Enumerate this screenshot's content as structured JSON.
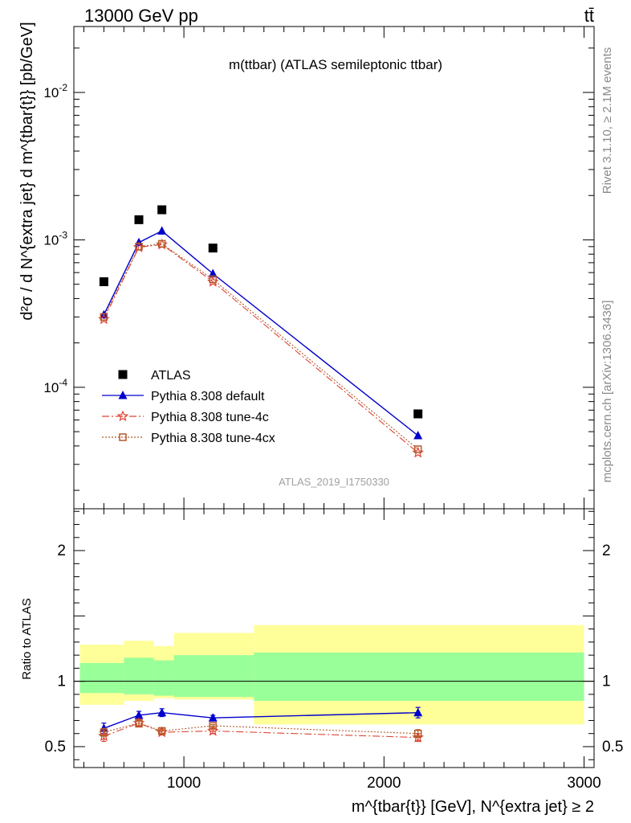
{
  "header": {
    "energy_label": "13000 GeV pp",
    "process_label": "tt̄",
    "plot_title": "m(ttbar) (ATLAS semileptonic ttbar)",
    "analysis_id": "ATLAS_2019_I1750330",
    "side_rivet": "Rivet 3.1.10, ≥ 2.1M events",
    "side_mcplots": "mcplots.cern.ch [arXiv:1306.3436]"
  },
  "axes": {
    "main_ylabel": "d²σ / d N^{extra jet} d m^{tbar{t}} [pb/GeV]",
    "ratio_ylabel": "Ratio to ATLAS",
    "xlabel": "m^{tbar{t}} [GeV], N^{extra jet} ≥ 2"
  },
  "legend": {
    "items": [
      {
        "label": "ATLAS",
        "color": "#000000",
        "marker": "square",
        "line": "none"
      },
      {
        "label": "Pythia 8.308 default",
        "color": "#0000cc",
        "marker": "triangle",
        "line": "solid"
      },
      {
        "label": "Pythia 8.308 tune-4c",
        "color": "#dd4433",
        "marker": "star",
        "line": "dashdot"
      },
      {
        "label": "Pythia 8.308 tune-4cx",
        "color": "#b45a2a",
        "marker": "open-square",
        "line": "dotted"
      }
    ]
  },
  "chart_data": {
    "type": "scatter",
    "xlim": [
      450,
      3050
    ],
    "main": {
      "yscale": "log",
      "ylim": [
        1.5e-05,
        0.028
      ],
      "yticks": [
        0.0001,
        0.001,
        0.01
      ],
      "ytick_labels": [
        "10^-4",
        "10^-3",
        "10^-2"
      ],
      "series": [
        {
          "name": "ATLAS",
          "color": "#000000",
          "marker": "square",
          "x": [
            600,
            775,
            890,
            1145,
            2170
          ],
          "y": [
            0.00052,
            0.00137,
            0.0016,
            0.00088,
            6.6e-05
          ]
        },
        {
          "name": "Pythia 8.308 default",
          "color": "#0000cc",
          "marker": "triangle",
          "x": [
            600,
            775,
            890,
            1145,
            2170
          ],
          "y": [
            0.00031,
            0.00096,
            0.00115,
            0.00059,
            4.7e-05
          ]
        },
        {
          "name": "Pythia 8.308 tune-4c",
          "color": "#dd4433",
          "marker": "star",
          "x": [
            600,
            775,
            890,
            1145,
            2170
          ],
          "y": [
            0.00029,
            0.00089,
            0.00093,
            0.00052,
            3.6e-05
          ]
        },
        {
          "name": "Pythia 8.308 tune-4cx",
          "color": "#b45a2a",
          "marker": "open-square",
          "x": [
            600,
            775,
            890,
            1145,
            2170
          ],
          "y": [
            0.0003,
            0.0009,
            0.00094,
            0.00054,
            3.8e-05
          ]
        }
      ]
    },
    "ratio": {
      "ylim": [
        0.34,
        2.32
      ],
      "yticks": [
        0.5,
        1,
        2
      ],
      "ytick_labels": [
        "0.5",
        "1",
        "2"
      ],
      "xticks": [
        1000,
        2000,
        3000
      ],
      "xtick_labels": [
        "1000",
        "2000",
        "3000"
      ],
      "bins": [
        [
          480,
          700
        ],
        [
          700,
          850
        ],
        [
          850,
          950
        ],
        [
          950,
          1350
        ],
        [
          1350,
          3000
        ]
      ],
      "band_yellow": [
        [
          0.82,
          1.28
        ],
        [
          0.85,
          1.31
        ],
        [
          0.87,
          1.27
        ],
        [
          0.86,
          1.37
        ],
        [
          0.67,
          1.43
        ]
      ],
      "band_green": [
        [
          0.91,
          1.14
        ],
        [
          0.9,
          1.18
        ],
        [
          0.89,
          1.16
        ],
        [
          0.88,
          1.2
        ],
        [
          0.85,
          1.22
        ]
      ],
      "series": [
        {
          "name": "Pythia 8.308 default",
          "color": "#0000cc",
          "marker": "triangle",
          "x": [
            600,
            775,
            890,
            1145,
            2170
          ],
          "y": [
            0.64,
            0.74,
            0.76,
            0.72,
            0.76
          ],
          "err": [
            0.04,
            0.03,
            0.03,
            0.02,
            0.04
          ]
        },
        {
          "name": "Pythia 8.308 tune-4c",
          "color": "#dd4433",
          "marker": "star",
          "x": [
            600,
            775,
            890,
            1145,
            2170
          ],
          "y": [
            0.58,
            0.68,
            0.61,
            0.62,
            0.57
          ],
          "err": [
            0.04,
            0.03,
            0.02,
            0.02,
            0.03
          ]
        },
        {
          "name": "Pythia 8.308 tune-4cx",
          "color": "#b45a2a",
          "marker": "open-square",
          "x": [
            600,
            775,
            890,
            1145,
            2170
          ],
          "y": [
            0.61,
            0.68,
            0.62,
            0.66,
            0.6
          ],
          "err": [
            0.03,
            0.02,
            0.02,
            0.01,
            0.03
          ]
        }
      ]
    }
  }
}
